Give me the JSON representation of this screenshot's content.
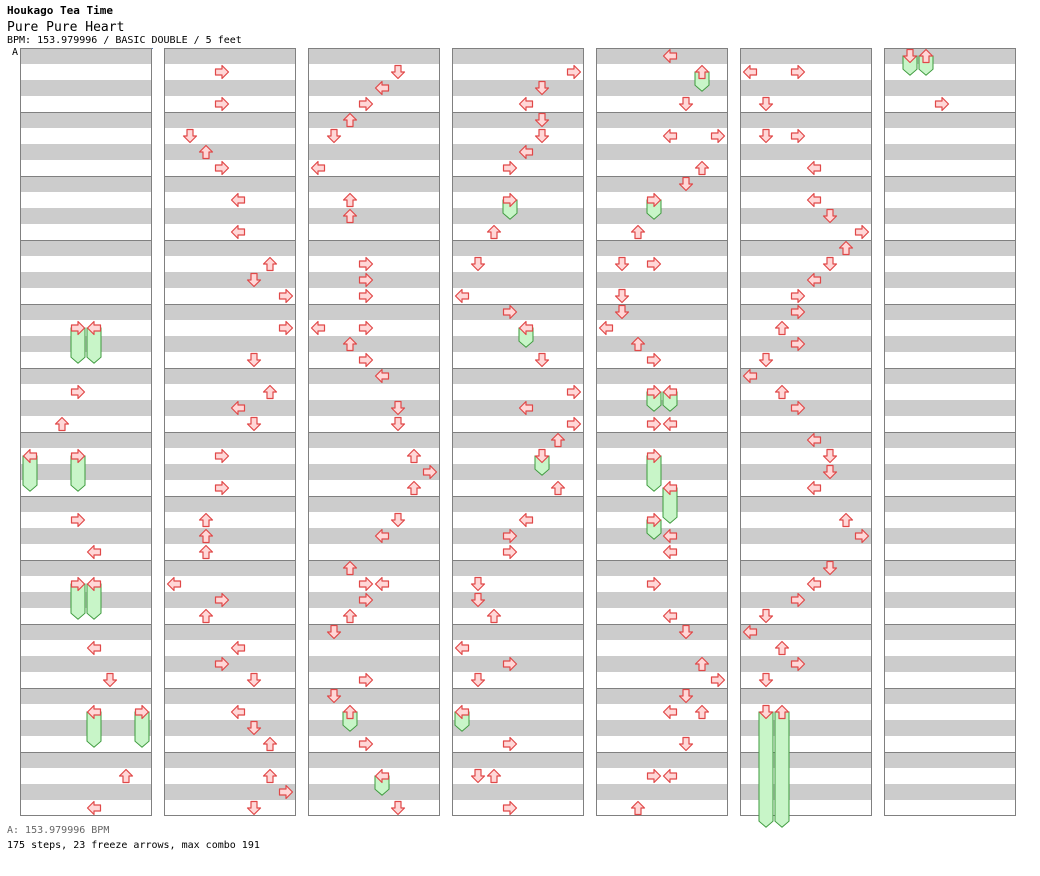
{
  "header": {
    "artist": "Houkago Tea Time",
    "title": "Pure Pure Heart",
    "info": "BPM: 153.979996 / BASIC DOUBLE / 5 feet",
    "bpm_marker": "A"
  },
  "footer": {
    "bpm": "A: 153.979996 BPM",
    "stats": "175 steps, 23 freeze arrows, max combo 191"
  },
  "colors": {
    "arrow_fill": "#ffd7d7",
    "arrow_stroke": "#e04848",
    "freeze_fill": "#c8f5c8",
    "freeze_stroke": "#3c9a3c",
    "band_gray": "#cccccc",
    "grid_border": "#808080",
    "bpm_line": "#4a7fd0"
  },
  "chart_data": {
    "type": "step-chart",
    "columns": 7,
    "measures_per_column": 12,
    "lanes": 8,
    "lane_directions": [
      "left",
      "down",
      "up",
      "right",
      "left",
      "down",
      "up",
      "right"
    ],
    "beat_note": "beat is measured in quarter beats from the top of the first measure (4 beats per measure)",
    "arrows": [
      {
        "col": 0,
        "lane": 3,
        "beat": 17
      },
      {
        "col": 0,
        "lane": 4,
        "beat": 17
      },
      {
        "col": 0,
        "lane": 3,
        "beat": 21
      },
      {
        "col": 0,
        "lane": 2,
        "beat": 23
      },
      {
        "col": 0,
        "lane": 0,
        "beat": 25
      },
      {
        "col": 0,
        "lane": 3,
        "beat": 25
      },
      {
        "col": 0,
        "lane": 3,
        "beat": 29
      },
      {
        "col": 0,
        "lane": 4,
        "beat": 31
      },
      {
        "col": 0,
        "lane": 3,
        "beat": 33
      },
      {
        "col": 0,
        "lane": 4,
        "beat": 33
      },
      {
        "col": 0,
        "lane": 4,
        "beat": 37
      },
      {
        "col": 0,
        "lane": 5,
        "beat": 39
      },
      {
        "col": 0,
        "lane": 4,
        "beat": 41
      },
      {
        "col": 0,
        "lane": 7,
        "beat": 41
      },
      {
        "col": 0,
        "lane": 6,
        "beat": 45
      },
      {
        "col": 0,
        "lane": 4,
        "beat": 47
      },
      {
        "col": 1,
        "lane": 3,
        "beat": 1
      },
      {
        "col": 1,
        "lane": 3,
        "beat": 3
      },
      {
        "col": 1,
        "lane": 1,
        "beat": 5
      },
      {
        "col": 1,
        "lane": 2,
        "beat": 6
      },
      {
        "col": 1,
        "lane": 3,
        "beat": 7
      },
      {
        "col": 1,
        "lane": 4,
        "beat": 9
      },
      {
        "col": 1,
        "lane": 4,
        "beat": 11
      },
      {
        "col": 1,
        "lane": 6,
        "beat": 13
      },
      {
        "col": 1,
        "lane": 5,
        "beat": 14
      },
      {
        "col": 1,
        "lane": 7,
        "beat": 15
      },
      {
        "col": 1,
        "lane": 7,
        "beat": 17
      },
      {
        "col": 1,
        "lane": 5,
        "beat": 19
      },
      {
        "col": 1,
        "lane": 6,
        "beat": 21
      },
      {
        "col": 1,
        "lane": 4,
        "beat": 22
      },
      {
        "col": 1,
        "lane": 5,
        "beat": 23
      },
      {
        "col": 1,
        "lane": 3,
        "beat": 25
      },
      {
        "col": 1,
        "lane": 3,
        "beat": 27
      },
      {
        "col": 1,
        "lane": 2,
        "beat": 29
      },
      {
        "col": 1,
        "lane": 2,
        "beat": 30
      },
      {
        "col": 1,
        "lane": 2,
        "beat": 31
      },
      {
        "col": 1,
        "lane": 0,
        "beat": 33
      },
      {
        "col": 1,
        "lane": 3,
        "beat": 34
      },
      {
        "col": 1,
        "lane": 2,
        "beat": 35
      },
      {
        "col": 1,
        "lane": 4,
        "beat": 37
      },
      {
        "col": 1,
        "lane": 3,
        "beat": 38
      },
      {
        "col": 1,
        "lane": 5,
        "beat": 39
      },
      {
        "col": 1,
        "lane": 4,
        "beat": 41
      },
      {
        "col": 1,
        "lane": 5,
        "beat": 42
      },
      {
        "col": 1,
        "lane": 6,
        "beat": 43
      },
      {
        "col": 1,
        "lane": 6,
        "beat": 45
      },
      {
        "col": 1,
        "lane": 7,
        "beat": 46
      },
      {
        "col": 1,
        "lane": 5,
        "beat": 47
      },
      {
        "col": 2,
        "lane": 5,
        "beat": 1
      },
      {
        "col": 2,
        "lane": 4,
        "beat": 2
      },
      {
        "col": 2,
        "lane": 3,
        "beat": 3
      },
      {
        "col": 2,
        "lane": 2,
        "beat": 4
      },
      {
        "col": 2,
        "lane": 1,
        "beat": 5
      },
      {
        "col": 2,
        "lane": 0,
        "beat": 7
      },
      {
        "col": 2,
        "lane": 2,
        "beat": 9
      },
      {
        "col": 2,
        "lane": 2,
        "beat": 10
      },
      {
        "col": 2,
        "lane": 3,
        "beat": 13
      },
      {
        "col": 2,
        "lane": 3,
        "beat": 14
      },
      {
        "col": 2,
        "lane": 3,
        "beat": 15
      },
      {
        "col": 2,
        "lane": 0,
        "beat": 17
      },
      {
        "col": 2,
        "lane": 3,
        "beat": 17
      },
      {
        "col": 2,
        "lane": 2,
        "beat": 18
      },
      {
        "col": 2,
        "lane": 3,
        "beat": 19
      },
      {
        "col": 2,
        "lane": 4,
        "beat": 20
      },
      {
        "col": 2,
        "lane": 5,
        "beat": 22
      },
      {
        "col": 2,
        "lane": 5,
        "beat": 23
      },
      {
        "col": 2,
        "lane": 6,
        "beat": 25
      },
      {
        "col": 2,
        "lane": 7,
        "beat": 26
      },
      {
        "col": 2,
        "lane": 6,
        "beat": 27
      },
      {
        "col": 2,
        "lane": 5,
        "beat": 29
      },
      {
        "col": 2,
        "lane": 4,
        "beat": 30
      },
      {
        "col": 2,
        "lane": 2,
        "beat": 32
      },
      {
        "col": 2,
        "lane": 3,
        "beat": 33
      },
      {
        "col": 2,
        "lane": 4,
        "beat": 33
      },
      {
        "col": 2,
        "lane": 3,
        "beat": 34
      },
      {
        "col": 2,
        "lane": 2,
        "beat": 35
      },
      {
        "col": 2,
        "lane": 1,
        "beat": 36
      },
      {
        "col": 2,
        "lane": 3,
        "beat": 39
      },
      {
        "col": 2,
        "lane": 1,
        "beat": 40
      },
      {
        "col": 2,
        "lane": 2,
        "beat": 41
      },
      {
        "col": 2,
        "lane": 3,
        "beat": 43
      },
      {
        "col": 2,
        "lane": 4,
        "beat": 45
      },
      {
        "col": 2,
        "lane": 5,
        "beat": 47
      },
      {
        "col": 3,
        "lane": 7,
        "beat": 1
      },
      {
        "col": 3,
        "lane": 5,
        "beat": 2
      },
      {
        "col": 3,
        "lane": 4,
        "beat": 3
      },
      {
        "col": 3,
        "lane": 5,
        "beat": 4
      },
      {
        "col": 3,
        "lane": 5,
        "beat": 5
      },
      {
        "col": 3,
        "lane": 4,
        "beat": 6
      },
      {
        "col": 3,
        "lane": 3,
        "beat": 7
      },
      {
        "col": 3,
        "lane": 3,
        "beat": 9
      },
      {
        "col": 3,
        "lane": 2,
        "beat": 11
      },
      {
        "col": 3,
        "lane": 1,
        "beat": 13
      },
      {
        "col": 3,
        "lane": 0,
        "beat": 15
      },
      {
        "col": 3,
        "lane": 3,
        "beat": 16
      },
      {
        "col": 3,
        "lane": 4,
        "beat": 17
      },
      {
        "col": 3,
        "lane": 5,
        "beat": 19
      },
      {
        "col": 3,
        "lane": 7,
        "beat": 21
      },
      {
        "col": 3,
        "lane": 4,
        "beat": 22
      },
      {
        "col": 3,
        "lane": 7,
        "beat": 23
      },
      {
        "col": 3,
        "lane": 6,
        "beat": 24
      },
      {
        "col": 3,
        "lane": 5,
        "beat": 25
      },
      {
        "col": 3,
        "lane": 6,
        "beat": 27
      },
      {
        "col": 3,
        "lane": 4,
        "beat": 29
      },
      {
        "col": 3,
        "lane": 3,
        "beat": 30
      },
      {
        "col": 3,
        "lane": 3,
        "beat": 31
      },
      {
        "col": 3,
        "lane": 1,
        "beat": 33
      },
      {
        "col": 3,
        "lane": 1,
        "beat": 34
      },
      {
        "col": 3,
        "lane": 2,
        "beat": 35
      },
      {
        "col": 3,
        "lane": 0,
        "beat": 37
      },
      {
        "col": 3,
        "lane": 3,
        "beat": 38
      },
      {
        "col": 3,
        "lane": 1,
        "beat": 39
      },
      {
        "col": 3,
        "lane": 0,
        "beat": 41
      },
      {
        "col": 3,
        "lane": 3,
        "beat": 43
      },
      {
        "col": 3,
        "lane": 1,
        "beat": 45
      },
      {
        "col": 3,
        "lane": 2,
        "beat": 45
      },
      {
        "col": 3,
        "lane": 3,
        "beat": 47
      },
      {
        "col": 4,
        "lane": 4,
        "beat": 0
      },
      {
        "col": 4,
        "lane": 6,
        "beat": 1
      },
      {
        "col": 4,
        "lane": 5,
        "beat": 3
      },
      {
        "col": 4,
        "lane": 4,
        "beat": 5
      },
      {
        "col": 4,
        "lane": 7,
        "beat": 5
      },
      {
        "col": 4,
        "lane": 6,
        "beat": 7
      },
      {
        "col": 4,
        "lane": 5,
        "beat": 8
      },
      {
        "col": 4,
        "lane": 3,
        "beat": 9
      },
      {
        "col": 4,
        "lane": 2,
        "beat": 11
      },
      {
        "col": 4,
        "lane": 1,
        "beat": 13
      },
      {
        "col": 4,
        "lane": 3,
        "beat": 13
      },
      {
        "col": 4,
        "lane": 1,
        "beat": 15
      },
      {
        "col": 4,
        "lane": 1,
        "beat": 16
      },
      {
        "col": 4,
        "lane": 0,
        "beat": 17
      },
      {
        "col": 4,
        "lane": 2,
        "beat": 18
      },
      {
        "col": 4,
        "lane": 3,
        "beat": 19
      },
      {
        "col": 4,
        "lane": 3,
        "beat": 21
      },
      {
        "col": 4,
        "lane": 4,
        "beat": 21
      },
      {
        "col": 4,
        "lane": 3,
        "beat": 23
      },
      {
        "col": 4,
        "lane": 4,
        "beat": 23
      },
      {
        "col": 4,
        "lane": 3,
        "beat": 25
      },
      {
        "col": 4,
        "lane": 4,
        "beat": 27
      },
      {
        "col": 4,
        "lane": 3,
        "beat": 29
      },
      {
        "col": 4,
        "lane": 4,
        "beat": 30
      },
      {
        "col": 4,
        "lane": 4,
        "beat": 31
      },
      {
        "col": 4,
        "lane": 3,
        "beat": 33
      },
      {
        "col": 4,
        "lane": 4,
        "beat": 35
      },
      {
        "col": 4,
        "lane": 5,
        "beat": 36
      },
      {
        "col": 4,
        "lane": 6,
        "beat": 38
      },
      {
        "col": 4,
        "lane": 7,
        "beat": 39
      },
      {
        "col": 4,
        "lane": 5,
        "beat": 40
      },
      {
        "col": 4,
        "lane": 4,
        "beat": 41
      },
      {
        "col": 4,
        "lane": 6,
        "beat": 41
      },
      {
        "col": 4,
        "lane": 5,
        "beat": 43
      },
      {
        "col": 4,
        "lane": 3,
        "beat": 45
      },
      {
        "col": 4,
        "lane": 4,
        "beat": 45
      },
      {
        "col": 4,
        "lane": 2,
        "beat": 47
      },
      {
        "col": 5,
        "lane": 0,
        "beat": 1
      },
      {
        "col": 5,
        "lane": 3,
        "beat": 1
      },
      {
        "col": 5,
        "lane": 1,
        "beat": 3
      },
      {
        "col": 5,
        "lane": 1,
        "beat": 5
      },
      {
        "col": 5,
        "lane": 3,
        "beat": 5
      },
      {
        "col": 5,
        "lane": 4,
        "beat": 7
      },
      {
        "col": 5,
        "lane": 4,
        "beat": 9
      },
      {
        "col": 5,
        "lane": 5,
        "beat": 10
      },
      {
        "col": 5,
        "lane": 7,
        "beat": 11
      },
      {
        "col": 5,
        "lane": 6,
        "beat": 12
      },
      {
        "col": 5,
        "lane": 5,
        "beat": 13
      },
      {
        "col": 5,
        "lane": 4,
        "beat": 14
      },
      {
        "col": 5,
        "lane": 3,
        "beat": 15
      },
      {
        "col": 5,
        "lane": 3,
        "beat": 16
      },
      {
        "col": 5,
        "lane": 2,
        "beat": 17
      },
      {
        "col": 5,
        "lane": 3,
        "beat": 18
      },
      {
        "col": 5,
        "lane": 1,
        "beat": 19
      },
      {
        "col": 5,
        "lane": 0,
        "beat": 20
      },
      {
        "col": 5,
        "lane": 2,
        "beat": 21
      },
      {
        "col": 5,
        "lane": 3,
        "beat": 22
      },
      {
        "col": 5,
        "lane": 4,
        "beat": 24
      },
      {
        "col": 5,
        "lane": 5,
        "beat": 25
      },
      {
        "col": 5,
        "lane": 5,
        "beat": 26
      },
      {
        "col": 5,
        "lane": 4,
        "beat": 27
      },
      {
        "col": 5,
        "lane": 6,
        "beat": 29
      },
      {
        "col": 5,
        "lane": 7,
        "beat": 30
      },
      {
        "col": 5,
        "lane": 5,
        "beat": 32
      },
      {
        "col": 5,
        "lane": 4,
        "beat": 33
      },
      {
        "col": 5,
        "lane": 3,
        "beat": 34
      },
      {
        "col": 5,
        "lane": 1,
        "beat": 35
      },
      {
        "col": 5,
        "lane": 0,
        "beat": 36
      },
      {
        "col": 5,
        "lane": 2,
        "beat": 37
      },
      {
        "col": 5,
        "lane": 3,
        "beat": 38
      },
      {
        "col": 5,
        "lane": 1,
        "beat": 39
      },
      {
        "col": 5,
        "lane": 1,
        "beat": 41
      },
      {
        "col": 5,
        "lane": 2,
        "beat": 41
      },
      {
        "col": 6,
        "lane": 1,
        "beat": 0
      },
      {
        "col": 6,
        "lane": 2,
        "beat": 0
      },
      {
        "col": 6,
        "lane": 3,
        "beat": 3
      }
    ],
    "freezes": [
      {
        "col": 0,
        "lane": 3,
        "start": 17,
        "end": 19.2
      },
      {
        "col": 0,
        "lane": 4,
        "start": 17,
        "end": 19.2
      },
      {
        "col": 0,
        "lane": 0,
        "start": 25,
        "end": 27.2
      },
      {
        "col": 0,
        "lane": 3,
        "start": 25,
        "end": 27.2
      },
      {
        "col": 0,
        "lane": 3,
        "start": 33,
        "end": 35.2
      },
      {
        "col": 0,
        "lane": 4,
        "start": 33,
        "end": 35.2
      },
      {
        "col": 0,
        "lane": 4,
        "start": 41,
        "end": 43.2
      },
      {
        "col": 0,
        "lane": 7,
        "start": 41,
        "end": 43.2
      },
      {
        "col": 2,
        "lane": 2,
        "start": 41,
        "end": 42.2
      },
      {
        "col": 2,
        "lane": 4,
        "start": 45,
        "end": 46.2
      },
      {
        "col": 3,
        "lane": 3,
        "start": 9,
        "end": 10.2
      },
      {
        "col": 3,
        "lane": 4,
        "start": 17,
        "end": 18.2
      },
      {
        "col": 3,
        "lane": 5,
        "start": 25,
        "end": 26.2
      },
      {
        "col": 3,
        "lane": 0,
        "start": 41,
        "end": 42.2
      },
      {
        "col": 4,
        "lane": 6,
        "start": 1,
        "end": 2.2
      },
      {
        "col": 4,
        "lane": 3,
        "start": 9,
        "end": 10.2
      },
      {
        "col": 4,
        "lane": 3,
        "start": 21,
        "end": 22.2
      },
      {
        "col": 4,
        "lane": 4,
        "start": 21,
        "end": 22.2
      },
      {
        "col": 4,
        "lane": 3,
        "start": 25,
        "end": 27.2
      },
      {
        "col": 4,
        "lane": 4,
        "start": 27,
        "end": 29.2
      },
      {
        "col": 4,
        "lane": 3,
        "start": 29,
        "end": 30.2
      },
      {
        "col": 5,
        "lane": 1,
        "start": 41,
        "end": 48.2
      },
      {
        "col": 5,
        "lane": 2,
        "start": 41,
        "end": 48.2
      },
      {
        "col": 6,
        "lane": 1,
        "start": 0,
        "end": 1.2
      },
      {
        "col": 6,
        "lane": 2,
        "start": 0,
        "end": 1.2
      }
    ]
  }
}
